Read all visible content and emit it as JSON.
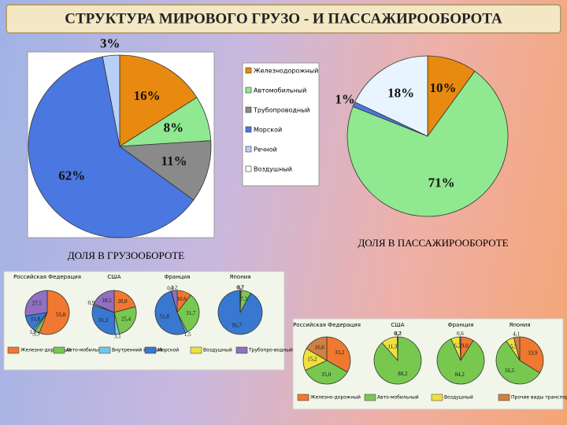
{
  "title": "СТРУКТУРА МИРОВОГО ГРУЗО - И ПАССАЖИРООБОРОТА",
  "chart_data": [
    {
      "type": "pie",
      "title": "ДОЛЯ В ГРУЗООБОРОТЕ",
      "categories": [
        "Железнодорожный",
        "Автомобильный",
        "Трубопроводный",
        "Морской",
        "Речной",
        "Воздушный"
      ],
      "colors": [
        "#e88a10",
        "#90e890",
        "#8a8a8a",
        "#4a78e0",
        "#b8d0f8",
        "#ffffff"
      ],
      "values": [
        16,
        8,
        11,
        62,
        3,
        null
      ],
      "value_labels": [
        "16%",
        "8%",
        "11%",
        "62%",
        "3%",
        null
      ]
    },
    {
      "type": "pie",
      "title": "ДОЛЯ В ПАССАЖИРООБОРОТЕ",
      "colors": [
        "#e88a10",
        "#90e890",
        "#8a8a8a",
        "#4a78e0",
        "#b8d0f8",
        "#e8f4ff"
      ],
      "values": [
        10,
        71,
        null,
        1,
        null,
        18
      ],
      "value_labels": [
        "10%",
        "71%",
        null,
        "1%",
        null,
        "18%"
      ]
    },
    {
      "type": "pie",
      "categories": [
        "Железно-дорожный",
        "Авто-мобильный",
        "Внутренний водный",
        "Морской",
        "Воздушный",
        "Трубопро-водный"
      ],
      "colors": [
        "#f07830",
        "#78c850",
        "#70c8e8",
        "#3878d0",
        "#f0e040",
        "#9070c0"
      ],
      "series": [
        {
          "name": "Российская Федерация",
          "values": [
            55.8,
            3.3,
            1.5,
            11.8,
            null,
            27.5
          ],
          "value_labels": [
            "55,8",
            "3,3",
            "1,5",
            "11,8",
            null,
            "27,5"
          ]
        },
        {
          "name": "США",
          "values": [
            20.8,
            25.4,
            3.1,
            31.3,
            0.9,
            18.5
          ],
          "value_labels": [
            "20,8",
            "25,4",
            "3,1",
            "31,3",
            "0,9",
            "18,5"
          ]
        },
        {
          "name": "Франция",
          "values": [
            10.6,
            31.7,
            1.5,
            51.8,
            0.2,
            4.2
          ],
          "value_labels": [
            "10,6",
            "31,7",
            "1,5",
            "51,8",
            "0,2",
            "4,2"
          ]
        },
        {
          "name": "Япония",
          "values": [
            0.7,
            7.3,
            null,
            91.7,
            0.2,
            null
          ],
          "value_labels": [
            "0,7",
            "7,3",
            null,
            "91,7",
            "0,2",
            null
          ]
        }
      ]
    },
    {
      "type": "pie",
      "categories": [
        "Железно-дорожный",
        "Авто-мобильный",
        "Воздушный",
        "Прочие виды транспорта"
      ],
      "colors": [
        "#f07830",
        "#78c850",
        "#f0e040",
        "#d08040"
      ],
      "series": [
        {
          "name": "Российская Федерация",
          "values": [
            33.2,
            35.0,
            15.2,
            16.6
          ],
          "value_labels": [
            "33,2",
            "35,0",
            "15,2",
            "16,6"
          ]
        },
        {
          "name": "США",
          "values": [
            0.3,
            88.2,
            11.3,
            0.2
          ],
          "value_labels": [
            "0,3",
            "88,2",
            "11,3",
            "0,2"
          ]
        },
        {
          "name": "Франция",
          "values": [
            9.0,
            84.2,
            6.2,
            0.6
          ],
          "value_labels": [
            "9,0",
            "84,2",
            "6,2",
            "0,6"
          ]
        },
        {
          "name": "Япония",
          "values": [
            33.9,
            56.5,
            5.5,
            4.1
          ],
          "value_labels": [
            "33,9",
            "56,5",
            "5,5",
            "4,1"
          ]
        }
      ]
    }
  ]
}
